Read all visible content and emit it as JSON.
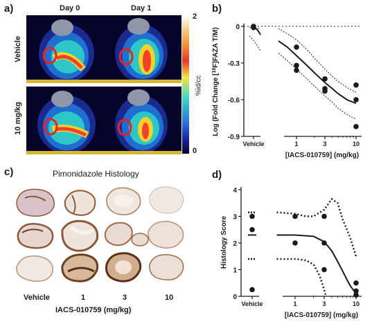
{
  "panels": {
    "a": "a)",
    "b": "b)",
    "c": "c)",
    "d": "d)"
  },
  "panel_a": {
    "col_labels": [
      "Day 0",
      "Day 1"
    ],
    "row_labels": [
      "Vehicle",
      "10 mg/kg"
    ],
    "colorbar": {
      "max": "2",
      "min": "0",
      "unit": "%id/cc"
    }
  },
  "panel_c": {
    "title": "Pimonidazole Histology",
    "col_labels": [
      "Vehicle",
      "1",
      "3",
      "10"
    ],
    "xlabel": "IACS-010759 (mg/kg)"
  },
  "chart_data": [
    {
      "panel": "b",
      "type": "scatter",
      "ylabel": "Log (Fold Change [18F]FAZA T/M)",
      "xlabel": "[IACS-010759] (mg/kg)",
      "x_ticks": [
        "Vehicle",
        "1",
        "3",
        "10"
      ],
      "y_ticks": [
        "0",
        "-0.3",
        "-0.6",
        "-0.9"
      ],
      "ylim": [
        -0.95,
        0.05
      ],
      "x_scale": "log",
      "points": [
        {
          "x": "Vehicle",
          "y": 0.0
        },
        {
          "x": "Vehicle",
          "y": -0.01
        },
        {
          "x": 1,
          "y": -0.17
        },
        {
          "x": 1,
          "y": -0.32
        },
        {
          "x": 1,
          "y": -0.36
        },
        {
          "x": 3,
          "y": -0.43
        },
        {
          "x": 3,
          "y": -0.51
        },
        {
          "x": 3,
          "y": -0.53
        },
        {
          "x": 10,
          "y": -0.48
        },
        {
          "x": 10,
          "y": -0.6
        },
        {
          "x": 10,
          "y": -0.82
        }
      ],
      "fit": {
        "x": [
          0.5,
          0.7,
          1,
          1.5,
          2,
          3,
          4,
          5,
          7,
          10
        ],
        "y": [
          -0.12,
          -0.17,
          -0.24,
          -0.32,
          -0.38,
          -0.46,
          -0.51,
          -0.55,
          -0.6,
          -0.63
        ]
      },
      "ci_upper": {
        "x": [
          0.5,
          0.7,
          1,
          1.5,
          2,
          3,
          4,
          5,
          7,
          10
        ],
        "y": [
          -0.02,
          -0.06,
          -0.11,
          -0.19,
          -0.26,
          -0.35,
          -0.41,
          -0.45,
          -0.5,
          -0.54
        ]
      },
      "ci_lower": {
        "x": [
          0.5,
          0.7,
          1,
          1.5,
          2,
          3,
          4,
          5,
          7,
          10
        ],
        "y": [
          -0.22,
          -0.28,
          -0.35,
          -0.43,
          -0.49,
          -0.57,
          -0.62,
          -0.67,
          -0.72,
          -0.76
        ]
      },
      "vehicle_curve": {
        "y_start": 0.0,
        "y_end": -0.07
      },
      "vehicle_ci": {
        "upper": -0.01,
        "lower": -0.2
      },
      "reference_line": 0
    },
    {
      "panel": "d",
      "type": "scatter",
      "ylabel": "Histology Score",
      "xlabel": "[IACS-010759] (mg/kg)",
      "x_ticks": [
        "Vehicle",
        "1",
        "3",
        "10"
      ],
      "y_ticks": [
        "0",
        "1",
        "2",
        "3",
        "4"
      ],
      "ylim": [
        0,
        4
      ],
      "x_scale": "log",
      "points": [
        {
          "x": "Vehicle",
          "y": 3.0
        },
        {
          "x": "Vehicle",
          "y": 2.5
        },
        {
          "x": "Vehicle",
          "y": 0.25
        },
        {
          "x": 1,
          "y": 3.0
        },
        {
          "x": 1,
          "y": 2.0
        },
        {
          "x": 3,
          "y": 3.0
        },
        {
          "x": 3,
          "y": 2.0
        },
        {
          "x": 3,
          "y": 1.0
        },
        {
          "x": 10,
          "y": 0.5
        },
        {
          "x": 10,
          "y": 0.2
        },
        {
          "x": 10,
          "y": 0.05
        }
      ],
      "vehicle_mean": 2.3,
      "fit": {
        "x": [
          0.5,
          1,
          2,
          3,
          4,
          5,
          6,
          7,
          8,
          10
        ],
        "y": [
          2.3,
          2.3,
          2.25,
          2.05,
          1.7,
          1.3,
          0.95,
          0.65,
          0.4,
          0.1
        ]
      },
      "ci_upper": {
        "x": [
          0.5,
          1,
          1.5,
          2,
          3,
          4,
          5,
          6,
          8,
          10
        ],
        "y": [
          3.15,
          3.1,
          3.0,
          3.0,
          3.25,
          3.65,
          3.5,
          2.9,
          2.2,
          1.5
        ]
      },
      "ci_lower": {
        "x": [
          0.5,
          1,
          1.5,
          2,
          2.5,
          3,
          3.2
        ],
        "y": [
          1.4,
          1.4,
          1.35,
          1.2,
          0.8,
          0.25,
          0.0
        ]
      }
    }
  ],
  "colors": {
    "ink": "#1a1a1a",
    "roi_circle": "#e8231f",
    "tissue_stain": "#8a5a3a",
    "tissue_pale": "#e9dbd0"
  }
}
